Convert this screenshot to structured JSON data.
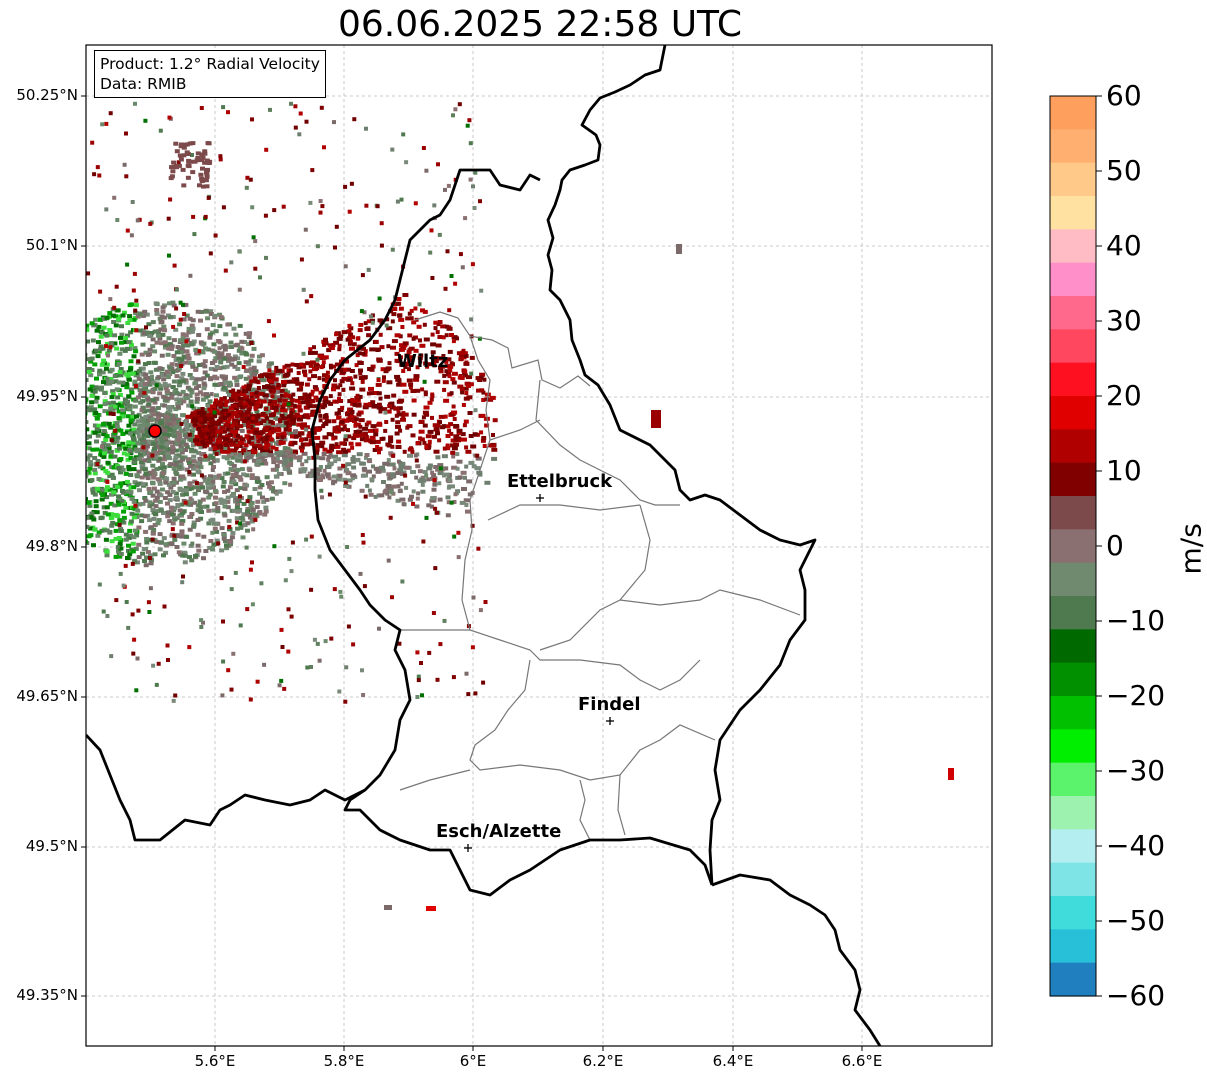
{
  "title": "06.06.2025 22:58 UTC",
  "info": {
    "product": "Product: 1.2° Radial Velocity",
    "data_source": "Data: RMIB"
  },
  "lat_ticks": [
    "50.25°N",
    "50.1°N",
    "49.95°N",
    "49.8°N",
    "49.65°N",
    "49.5°N",
    "49.35°N"
  ],
  "lon_ticks": [
    "5.6°E",
    "5.8°E",
    "6°E",
    "6.2°E",
    "6.4°E",
    "6.6°E"
  ],
  "cities": [
    {
      "name": "Wiltz"
    },
    {
      "name": "Ettelbruck"
    },
    {
      "name": "Findel"
    },
    {
      "name": "Esch/Alzette"
    }
  ],
  "colorbar": {
    "unit": "m/s",
    "ticks": [
      "60",
      "50",
      "40",
      "30",
      "20",
      "10",
      "0",
      "−10",
      "−20",
      "−30",
      "−40",
      "−50",
      "−60"
    ],
    "colors": [
      "#ff9f5e",
      "#ffb070",
      "#ffc98a",
      "#ffe2a2",
      "#ffbcc4",
      "#ff8fc9",
      "#ff6a8c",
      "#ff4860",
      "#ff1020",
      "#e00000",
      "#b00000",
      "#800000",
      "#7c4a4a",
      "#8a7070",
      "#6f8a6f",
      "#4f7a4f",
      "#006a00",
      "#009000",
      "#00c000",
      "#00ee00",
      "#5cf36c",
      "#9ef2b0",
      "#b4eef0",
      "#7ee4e6",
      "#40dcdc",
      "#28c0d8",
      "#1f7fbf"
    ]
  },
  "radar_marker_color": "#ff0000"
}
